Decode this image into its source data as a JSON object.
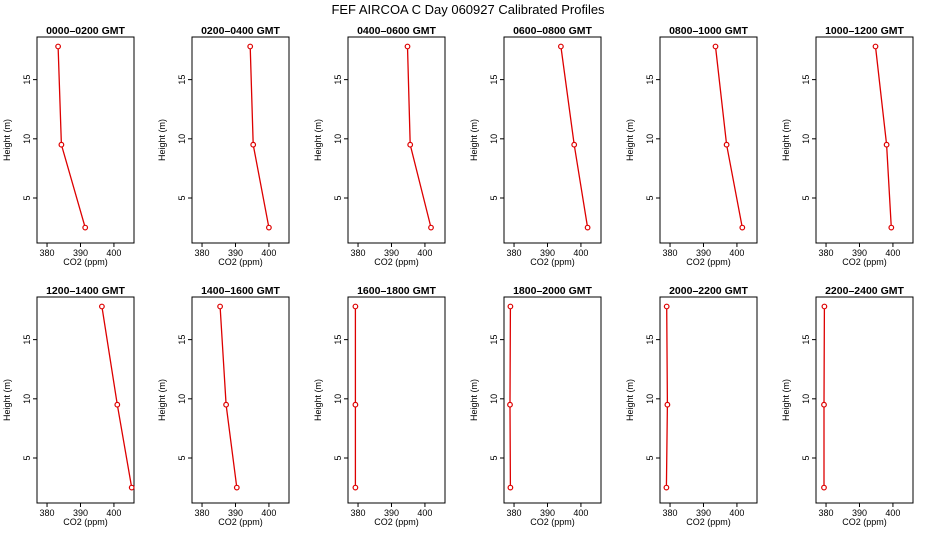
{
  "title": "FEF AIRCOA C  Day 060927  Calibrated Profiles",
  "colors": {
    "series": "#dd0000",
    "axes": "#000000"
  },
  "chart_data": {
    "type": "line",
    "xlabel": "CO2 (ppm)",
    "ylabel": "Height (m)",
    "xlim": [
      377,
      406
    ],
    "ylim": [
      1.2,
      18.6
    ],
    "xticks": [
      380,
      390,
      400
    ],
    "xtick_labels": [
      "380",
      "390",
      "400"
    ],
    "yticks": [
      5,
      10,
      15
    ],
    "ytick_labels": [
      "5",
      "10",
      "15"
    ],
    "panels": [
      {
        "title": "0000–0200 GMT",
        "points": [
          {
            "co2": 383.3,
            "height": 17.8
          },
          {
            "co2": 384.3,
            "height": 9.5
          },
          {
            "co2": 391.4,
            "height": 2.5
          }
        ]
      },
      {
        "title": "0200–0400 GMT",
        "points": [
          {
            "co2": 394.4,
            "height": 17.8
          },
          {
            "co2": 395.3,
            "height": 9.5
          },
          {
            "co2": 400.0,
            "height": 2.5
          }
        ]
      },
      {
        "title": "0400–0600 GMT",
        "points": [
          {
            "co2": 394.8,
            "height": 17.8
          },
          {
            "co2": 395.6,
            "height": 9.5
          },
          {
            "co2": 401.8,
            "height": 2.5
          }
        ]
      },
      {
        "title": "0600–0800 GMT",
        "points": [
          {
            "co2": 394.0,
            "height": 17.8
          },
          {
            "co2": 398.0,
            "height": 9.5
          },
          {
            "co2": 402.0,
            "height": 2.5
          }
        ]
      },
      {
        "title": "0800–1000 GMT",
        "points": [
          {
            "co2": 393.6,
            "height": 17.8
          },
          {
            "co2": 396.9,
            "height": 9.5
          },
          {
            "co2": 401.6,
            "height": 2.5
          }
        ]
      },
      {
        "title": "1000–1200 GMT",
        "points": [
          {
            "co2": 394.8,
            "height": 17.8
          },
          {
            "co2": 398.1,
            "height": 9.5
          },
          {
            "co2": 399.5,
            "height": 2.5
          }
        ]
      },
      {
        "title": "1200–1400 GMT",
        "points": [
          {
            "co2": 396.4,
            "height": 17.8
          },
          {
            "co2": 401.0,
            "height": 9.5
          },
          {
            "co2": 405.3,
            "height": 2.5
          }
        ]
      },
      {
        "title": "1400–1600 GMT",
        "points": [
          {
            "co2": 385.4,
            "height": 17.8
          },
          {
            "co2": 387.2,
            "height": 9.5
          },
          {
            "co2": 390.4,
            "height": 2.5
          }
        ]
      },
      {
        "title": "1600–1800 GMT",
        "points": [
          {
            "co2": 379.2,
            "height": 17.8
          },
          {
            "co2": 379.2,
            "height": 9.5
          },
          {
            "co2": 379.2,
            "height": 2.5
          }
        ]
      },
      {
        "title": "1800–2000 GMT",
        "points": [
          {
            "co2": 378.9,
            "height": 17.8
          },
          {
            "co2": 378.8,
            "height": 9.5
          },
          {
            "co2": 378.9,
            "height": 2.5
          }
        ]
      },
      {
        "title": "2000–2200 GMT",
        "points": [
          {
            "co2": 379.0,
            "height": 17.8
          },
          {
            "co2": 379.2,
            "height": 9.5
          },
          {
            "co2": 378.9,
            "height": 2.5
          }
        ]
      },
      {
        "title": "2200–2400 GMT",
        "points": [
          {
            "co2": 379.5,
            "height": 17.8
          },
          {
            "co2": 379.4,
            "height": 9.5
          },
          {
            "co2": 379.4,
            "height": 2.5
          }
        ]
      }
    ]
  }
}
